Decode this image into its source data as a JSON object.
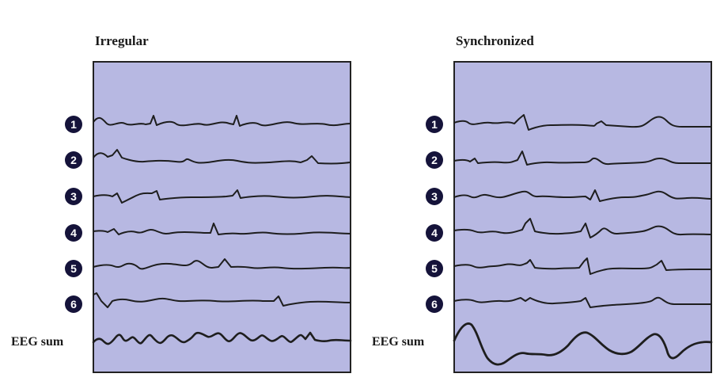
{
  "panels": [
    {
      "title": "Irregular",
      "channels": [
        "1",
        "2",
        "3",
        "4",
        "5",
        "6"
      ],
      "sum_label": "EEG sum"
    },
    {
      "title": "Synchronized",
      "channels": [
        "1",
        "2",
        "3",
        "4",
        "5",
        "6"
      ],
      "sum_label": "EEG sum"
    }
  ],
  "colors": {
    "panel_fill": "#b7b8e2",
    "panel_border": "#222222",
    "trace": "#1e1e1e",
    "badge": "#15133a"
  }
}
